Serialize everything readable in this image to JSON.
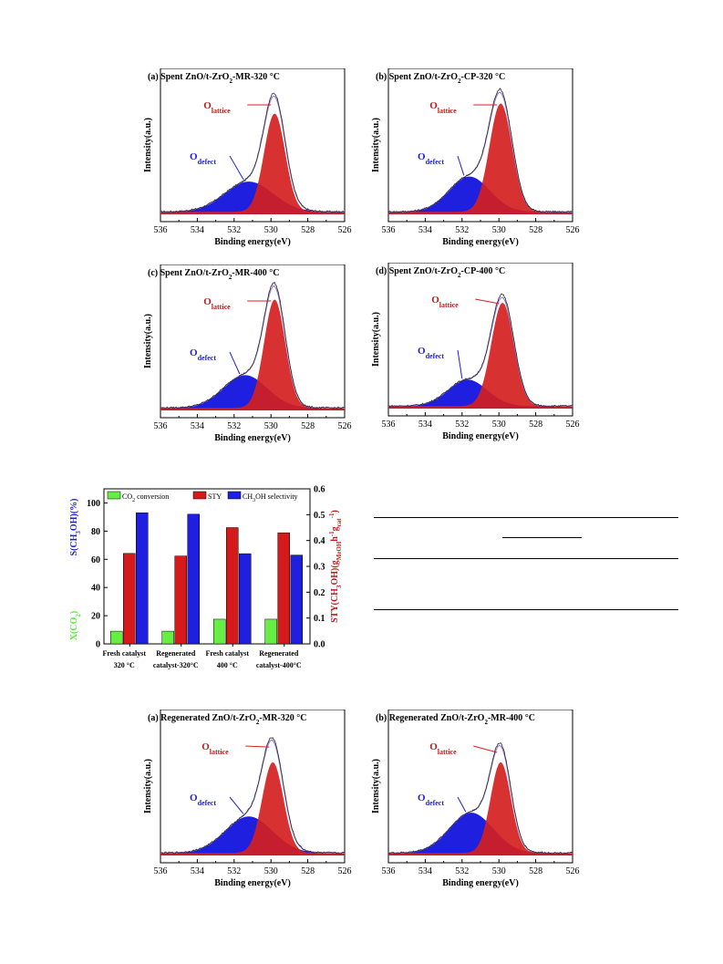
{
  "xps": {
    "xlabel": "Binding energy(eV)",
    "ylabel": "Intensity(a.u.)",
    "x_ticks": [
      536,
      534,
      532,
      530,
      528,
      526
    ],
    "xlim": [
      536,
      526
    ],
    "lattice_label": "O",
    "lattice_sub": "lattice",
    "defect_label": "O",
    "defect_sub": "defect",
    "colors": {
      "lattice": "#d42020",
      "defect": "#1f1fe0",
      "envelope": "#9a7fd8",
      "raw": "#2a2a2a",
      "lattice_text": "#c41818",
      "defect_text": "#1f1fd8"
    },
    "panels": [
      {
        "tag": "(a)",
        "title_pre": "Spent ZnO/t-ZrO",
        "title_sub": "2",
        "title_post": "-MR-320 °C",
        "lattice": {
          "center": 529.8,
          "height": 0.78,
          "fwhm": 1.35
        },
        "defect": {
          "center": 531.2,
          "height": 0.24,
          "fwhm": 3.1
        },
        "baseline": 0.02
      },
      {
        "tag": "(b)",
        "title_pre": "Spent ZnO/t-ZrO",
        "title_sub": "2",
        "title_post": "-CP-320 °C",
        "lattice": {
          "center": 529.9,
          "height": 0.86,
          "fwhm": 1.45
        },
        "defect": {
          "center": 531.6,
          "height": 0.28,
          "fwhm": 2.6
        },
        "baseline": 0.02
      },
      {
        "tag": "(c)",
        "title_pre": "Spent ZnO/t-ZrO",
        "title_sub": "2",
        "title_post": "-MR-400 °C",
        "lattice": {
          "center": 529.8,
          "height": 0.86,
          "fwhm": 1.35
        },
        "defect": {
          "center": 531.4,
          "height": 0.26,
          "fwhm": 2.8
        },
        "baseline": 0.02
      },
      {
        "tag": "(d)",
        "title_pre": "Spent ZnO/t-ZrO",
        "title_sub": "2",
        "title_post": "-CP-400 °C",
        "lattice": {
          "center": 529.8,
          "height": 0.82,
          "fwhm": 1.45
        },
        "defect": {
          "center": 531.7,
          "height": 0.21,
          "fwhm": 2.5
        },
        "baseline": 0.02
      },
      {
        "tag": "(a)",
        "title_pre": "Regenerated ZnO/t-ZrO",
        "title_sub": "2",
        "title_post": "-MR-320 °C",
        "lattice": {
          "center": 529.9,
          "height": 0.72,
          "fwhm": 1.35
        },
        "defect": {
          "center": 531.2,
          "height": 0.29,
          "fwhm": 3.0
        },
        "baseline": 0.02
      },
      {
        "tag": "(b)",
        "title_pre": "Regenerated ZnO/t-ZrO",
        "title_sub": "2",
        "title_post": "-MR-400 °C",
        "lattice": {
          "center": 529.9,
          "height": 0.72,
          "fwhm": 1.3
        },
        "defect": {
          "center": 531.5,
          "height": 0.32,
          "fwhm": 2.8
        },
        "baseline": 0.02
      }
    ]
  },
  "chart_data": {
    "type": "bar",
    "categories": [
      [
        "Fresh catalyst",
        "320 °C"
      ],
      [
        "Regenerated",
        "catalyst-320°C"
      ],
      [
        "Fresh catalyst",
        "400 °C"
      ],
      [
        "Regenerated",
        "catalyst-400°C"
      ]
    ],
    "legend": {
      "co2_pre": "CO",
      "co2_sub": "2",
      "co2_post": " conversion",
      "sty": "STY",
      "sel_pre": "CH",
      "sel_sub": "3",
      "sel_post": "OH selectivity"
    },
    "series": [
      {
        "name": "CO2 conversion",
        "axis": "left",
        "color": "#66ee44",
        "values": [
          9,
          9,
          17.5,
          17.5
        ]
      },
      {
        "name": "STY",
        "axis": "right",
        "color": "#d41a1a",
        "values": [
          0.35,
          0.34,
          0.45,
          0.43
        ]
      },
      {
        "name": "CH3OH selectivity",
        "axis": "left",
        "color": "#1f1fe0",
        "values": [
          93,
          92,
          64,
          63
        ]
      }
    ],
    "left_ticks": [
      0,
      20,
      40,
      60,
      80,
      100
    ],
    "right_ticks": [
      "0.0",
      "0.1",
      "0.2",
      "0.3",
      "0.4",
      "0.5",
      "0.6"
    ],
    "ylim_left": [
      0,
      110
    ],
    "ylim_right": [
      0,
      0.6
    ],
    "ylabel_left_blue": "S(CH3OH)(%)",
    "ylabel_left_green": "X(CO2)",
    "ylabel_right": "STY(CH3OH)(gMeOH·h⁻¹gcat⁻¹)",
    "ylabel_left_blue_parts": {
      "pre": "S(CH",
      "sub": "3",
      "post": "OH)(%)"
    },
    "ylabel_left_green_parts": {
      "pre": "X(CO",
      "sub": "2",
      "post": ")"
    },
    "ylabel_right_parts": {
      "a": "STY(CH",
      "b": "3",
      "c": "OH)(g",
      "d": "MeOH",
      "e": "h",
      "f": "-1",
      "g": "g",
      "h": "cat",
      "i": "-1",
      "j": ")"
    }
  }
}
